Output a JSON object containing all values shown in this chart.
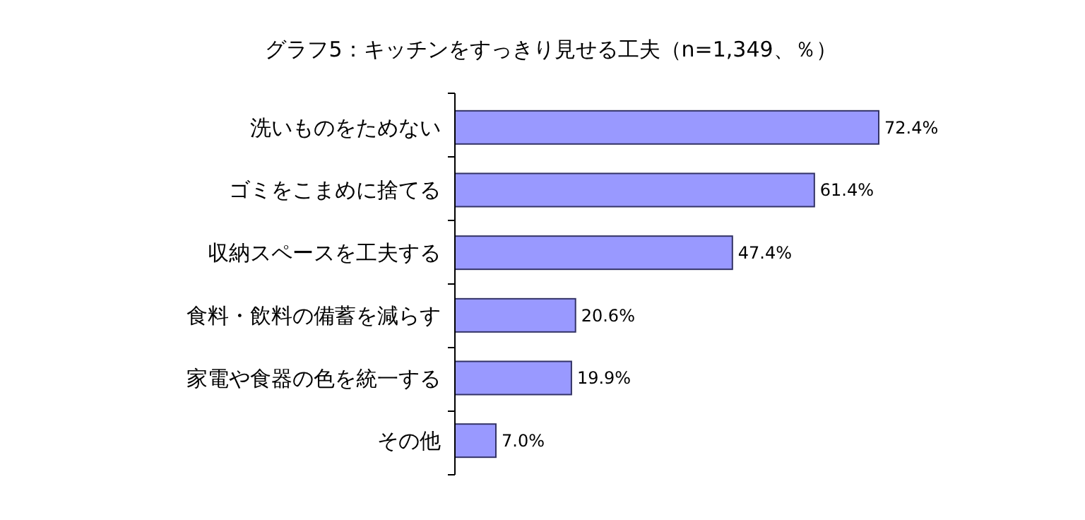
{
  "chart_data": {
    "type": "bar",
    "orientation": "horizontal",
    "title": "グラフ5：キッチンをすっきり見せる工夫（n=1,349、％）",
    "categories": [
      "洗いものをためない",
      "ゴミをこまめに捨てる",
      "収納スペースを工夫する",
      "食料・飲料の備蓄を減らす",
      "家電や食器の色を統一する",
      "その他"
    ],
    "values": [
      72.4,
      61.4,
      47.4,
      20.6,
      19.9,
      7.0
    ],
    "value_labels": [
      "72.4%",
      "61.4%",
      "47.4%",
      "20.6%",
      "19.9%",
      "7.0%"
    ],
    "color": "#9999ff"
  }
}
